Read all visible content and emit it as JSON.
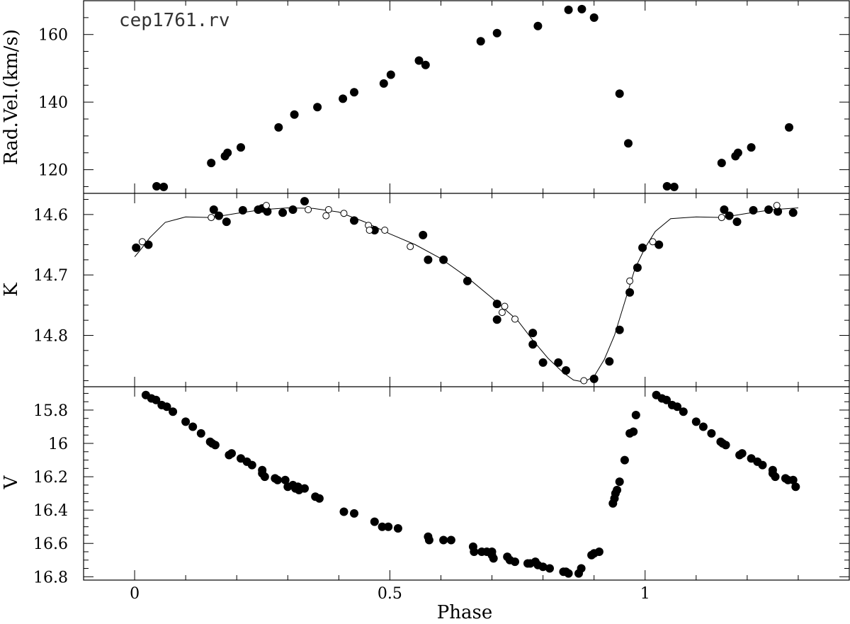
{
  "chart_data": [
    {
      "type": "scatter",
      "panel": "top",
      "annotation": "cep1761.rv",
      "ylabel": "Rad.Vel.(km/s)",
      "xlim": [
        -0.1,
        1.4
      ],
      "ylim": [
        113,
        170
      ],
      "yticks": [
        120,
        140,
        160
      ],
      "ytick_labels": [
        "120",
        "140",
        "160"
      ],
      "series": [
        {
          "marker": "filled",
          "points": [
            [
              0.043,
              115.1
            ],
            [
              0.057,
              114.9
            ],
            [
              0.15,
              122
            ],
            [
              0.177,
              124
            ],
            [
              0.182,
              125
            ],
            [
              0.208,
              126.6
            ],
            [
              0.282,
              132.5
            ],
            [
              0.313,
              136.3
            ],
            [
              0.358,
              138.5
            ],
            [
              0.408,
              141
            ],
            [
              0.43,
              142.9
            ],
            [
              0.488,
              145.5
            ],
            [
              0.502,
              148.1
            ],
            [
              0.557,
              152.3
            ],
            [
              0.57,
              151
            ],
            [
              0.678,
              158
            ],
            [
              0.71,
              160.4
            ],
            [
              0.79,
              162.5
            ],
            [
              0.85,
              167.3
            ],
            [
              0.876,
              167.5
            ],
            [
              0.9,
              165
            ],
            [
              0.95,
              142.5
            ],
            [
              0.967,
              127.8
            ],
            [
              1.043,
              115.1
            ],
            [
              1.057,
              114.9
            ],
            [
              1.15,
              122
            ],
            [
              1.177,
              124
            ],
            [
              1.182,
              125
            ],
            [
              1.208,
              126.6
            ],
            [
              1.282,
              132.5
            ]
          ]
        }
      ]
    },
    {
      "type": "scatter",
      "panel": "middle",
      "ylabel": "K",
      "xlim": [
        -0.1,
        1.4
      ],
      "ylim": [
        14.885,
        14.565
      ],
      "yticks": [
        14.6,
        14.7,
        14.8
      ],
      "ytick_labels": [
        "14.6",
        "14.7",
        "14.8"
      ],
      "series": [
        {
          "marker": "filled",
          "points": [
            [
              0.003,
              14.655
            ],
            [
              0.027,
              14.65
            ],
            [
              0.155,
              14.592
            ],
            [
              0.165,
              14.602
            ],
            [
              0.18,
              14.612
            ],
            [
              0.212,
              14.593
            ],
            [
              0.242,
              14.592
            ],
            [
              0.25,
              14.59
            ],
            [
              0.26,
              14.595
            ],
            [
              0.29,
              14.597
            ],
            [
              0.31,
              14.592
            ],
            [
              0.333,
              14.578
            ],
            [
              0.43,
              14.61
            ],
            [
              0.47,
              14.626
            ],
            [
              0.565,
              14.634
            ],
            [
              0.575,
              14.675
            ],
            [
              0.605,
              14.675
            ],
            [
              0.652,
              14.71
            ],
            [
              0.71,
              14.748
            ],
            [
              0.71,
              14.774
            ],
            [
              0.78,
              14.796
            ],
            [
              0.78,
              14.815
            ],
            [
              0.8,
              14.845
            ],
            [
              0.83,
              14.845
            ],
            [
              0.845,
              14.858
            ],
            [
              0.9,
              14.872
            ],
            [
              0.93,
              14.843
            ],
            [
              0.95,
              14.791
            ],
            [
              0.97,
              14.729
            ],
            [
              0.985,
              14.688
            ],
            [
              0.995,
              14.655
            ],
            [
              1.027,
              14.65
            ],
            [
              1.155,
              14.592
            ],
            [
              1.165,
              14.602
            ],
            [
              1.18,
              14.612
            ],
            [
              1.212,
              14.593
            ],
            [
              1.242,
              14.592
            ],
            [
              1.26,
              14.595
            ],
            [
              1.29,
              14.597
            ]
          ]
        },
        {
          "marker": "open",
          "points": [
            [
              0.015,
              14.645
            ],
            [
              0.15,
              14.605
            ],
            [
              0.258,
              14.585
            ],
            [
              0.34,
              14.592
            ],
            [
              0.375,
              14.602
            ],
            [
              0.38,
              14.592
            ],
            [
              0.41,
              14.598
            ],
            [
              0.458,
              14.618
            ],
            [
              0.46,
              14.626
            ],
            [
              0.49,
              14.626
            ],
            [
              0.54,
              14.653
            ],
            [
              0.72,
              14.762
            ],
            [
              0.725,
              14.752
            ],
            [
              0.745,
              14.773
            ],
            [
              0.88,
              14.875
            ],
            [
              0.97,
              14.71
            ],
            [
              1.015,
              14.645
            ],
            [
              1.15,
              14.605
            ],
            [
              1.258,
              14.585
            ]
          ]
        }
      ],
      "fit_curve": [
        [
          0,
          14.67
        ],
        [
          0.01,
          14.66
        ],
        [
          0.03,
          14.638
        ],
        [
          0.06,
          14.613
        ],
        [
          0.1,
          14.604
        ],
        [
          0.15,
          14.605
        ],
        [
          0.2,
          14.598
        ],
        [
          0.25,
          14.592
        ],
        [
          0.3,
          14.589
        ],
        [
          0.35,
          14.59
        ],
        [
          0.4,
          14.596
        ],
        [
          0.45,
          14.612
        ],
        [
          0.5,
          14.632
        ],
        [
          0.55,
          14.65
        ],
        [
          0.6,
          14.673
        ],
        [
          0.65,
          14.703
        ],
        [
          0.7,
          14.738
        ],
        [
          0.75,
          14.775
        ],
        [
          0.78,
          14.808
        ],
        [
          0.81,
          14.838
        ],
        [
          0.84,
          14.862
        ],
        [
          0.86,
          14.874
        ],
        [
          0.88,
          14.877
        ],
        [
          0.9,
          14.868
        ],
        [
          0.92,
          14.84
        ],
        [
          0.94,
          14.8
        ],
        [
          0.96,
          14.745
        ],
        [
          0.98,
          14.69
        ],
        [
          1.0,
          14.655
        ],
        [
          1.02,
          14.628
        ],
        [
          1.05,
          14.607
        ],
        [
          1.1,
          14.604
        ],
        [
          1.15,
          14.605
        ],
        [
          1.2,
          14.598
        ],
        [
          1.25,
          14.592
        ],
        [
          1.3,
          14.589
        ]
      ]
    },
    {
      "type": "scatter",
      "panel": "bottom",
      "xlabel": "Phase",
      "ylabel": "V",
      "xlim": [
        -0.1,
        1.4
      ],
      "ylim": [
        16.82,
        15.66
      ],
      "xticks": [
        0,
        0.5,
        1
      ],
      "xtick_labels": [
        "0",
        "0.5",
        "1"
      ],
      "yticks": [
        15.8,
        16,
        16.2,
        16.4,
        16.6,
        16.8
      ],
      "ytick_labels": [
        "15.8",
        "16",
        "16.2",
        "16.4",
        "16.6",
        "16.8"
      ],
      "series": [
        {
          "marker": "filled",
          "points": [
            [
              0.022,
              15.71
            ],
            [
              0.033,
              15.73
            ],
            [
              0.042,
              15.74
            ],
            [
              0.053,
              15.77
            ],
            [
              0.063,
              15.78
            ],
            [
              0.075,
              15.81
            ],
            [
              0.1,
              15.87
            ],
            [
              0.114,
              15.9
            ],
            [
              0.13,
              15.94
            ],
            [
              0.148,
              15.99
            ],
            [
              0.152,
              16
            ],
            [
              0.158,
              16.01
            ],
            [
              0.185,
              16.07
            ],
            [
              0.19,
              16.06
            ],
            [
              0.208,
              16.09
            ],
            [
              0.22,
              16.11
            ],
            [
              0.23,
              16.13
            ],
            [
              0.25,
              16.16
            ],
            [
              0.25,
              16.18
            ],
            [
              0.255,
              16.2
            ],
            [
              0.275,
              16.21
            ],
            [
              0.28,
              16.22
            ],
            [
              0.295,
              16.22
            ],
            [
              0.3,
              16.26
            ],
            [
              0.31,
              16.25
            ],
            [
              0.315,
              16.27
            ],
            [
              0.32,
              16.26
            ],
            [
              0.322,
              16.28
            ],
            [
              0.333,
              16.27
            ],
            [
              0.354,
              16.32
            ],
            [
              0.362,
              16.33
            ],
            [
              0.41,
              16.41
            ],
            [
              0.43,
              16.42
            ],
            [
              0.47,
              16.47
            ],
            [
              0.485,
              16.5
            ],
            [
              0.497,
              16.5
            ],
            [
              0.516,
              16.51
            ],
            [
              0.575,
              16.56
            ],
            [
              0.577,
              16.58
            ],
            [
              0.605,
              16.58
            ],
            [
              0.62,
              16.58
            ],
            [
              0.663,
              16.62
            ],
            [
              0.665,
              16.65
            ],
            [
              0.68,
              16.65
            ],
            [
              0.69,
              16.65
            ],
            [
              0.7,
              16.65
            ],
            [
              0.7,
              16.67
            ],
            [
              0.703,
              16.69
            ],
            [
              0.73,
              16.68
            ],
            [
              0.735,
              16.7
            ],
            [
              0.745,
              16.71
            ],
            [
              0.77,
              16.72
            ],
            [
              0.775,
              16.72
            ],
            [
              0.785,
              16.71
            ],
            [
              0.79,
              16.73
            ],
            [
              0.8,
              16.74
            ],
            [
              0.813,
              16.75
            ],
            [
              0.84,
              16.77
            ],
            [
              0.845,
              16.77
            ],
            [
              0.85,
              16.78
            ],
            [
              0.87,
              16.78
            ],
            [
              0.875,
              16.75
            ],
            [
              0.895,
              16.67
            ],
            [
              0.9,
              16.66
            ],
            [
              0.91,
              16.65
            ],
            [
              0.937,
              16.36
            ],
            [
              0.94,
              16.33
            ],
            [
              0.942,
              16.3
            ],
            [
              0.945,
              16.28
            ],
            [
              0.95,
              16.23
            ],
            [
              0.96,
              16.1
            ],
            [
              0.97,
              15.94
            ],
            [
              0.977,
              15.93
            ],
            [
              0.982,
              15.83
            ],
            [
              1.022,
              15.71
            ],
            [
              1.033,
              15.73
            ],
            [
              1.042,
              15.74
            ],
            [
              1.053,
              15.77
            ],
            [
              1.063,
              15.78
            ],
            [
              1.075,
              15.81
            ],
            [
              1.1,
              15.87
            ],
            [
              1.114,
              15.9
            ],
            [
              1.13,
              15.94
            ],
            [
              1.148,
              15.99
            ],
            [
              1.152,
              16
            ],
            [
              1.158,
              16.01
            ],
            [
              1.185,
              16.07
            ],
            [
              1.19,
              16.06
            ],
            [
              1.208,
              16.09
            ],
            [
              1.22,
              16.11
            ],
            [
              1.23,
              16.13
            ],
            [
              1.25,
              16.16
            ],
            [
              1.25,
              16.18
            ],
            [
              1.255,
              16.2
            ],
            [
              1.275,
              16.21
            ],
            [
              1.28,
              16.22
            ],
            [
              1.29,
              16.22
            ],
            [
              1.295,
              16.26
            ]
          ]
        }
      ]
    }
  ]
}
